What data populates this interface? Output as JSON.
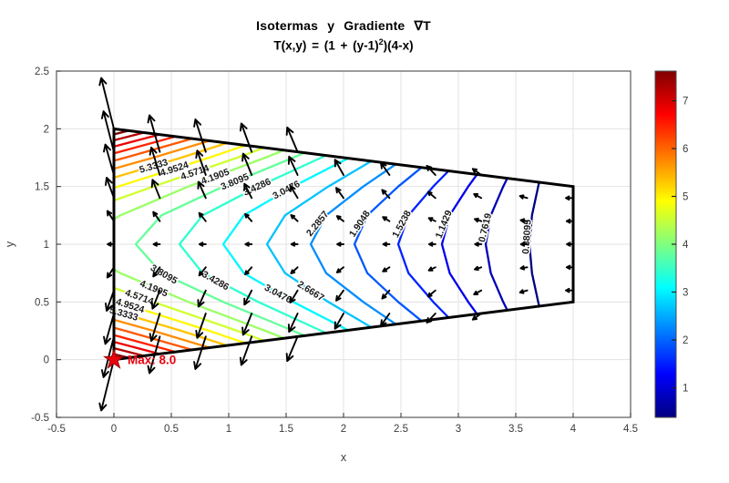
{
  "title": {
    "line1": "Isotermas y Gradiente ∇T",
    "line2_prefix": "T(x,y) = (1 + (y-1)",
    "line2_sup": "2",
    "line2_suffix": ")(4-x)"
  },
  "axes": {
    "xlabel": "x",
    "ylabel": "y",
    "xlim": [
      -0.5,
      4.5
    ],
    "ylim": [
      -0.5,
      2.5
    ],
    "xticks": [
      "-0.5",
      "0",
      "0.5",
      "1",
      "1.5",
      "2",
      "2.5",
      "3",
      "3.5",
      "4",
      "4.5"
    ],
    "yticks": [
      "-0.5",
      "0",
      "0.5",
      "1",
      "1.5",
      "2",
      "2.5"
    ],
    "grid": true,
    "tick_color": "#3c3c3c",
    "grid_color": "#e3e3e3",
    "box_color": "#595959"
  },
  "colorbar": {
    "position": "right",
    "colormap": "jet",
    "vmin": 0.380952,
    "vmax": 7.619048,
    "ticks": [
      "1",
      "2",
      "3",
      "4",
      "5",
      "6",
      "7"
    ],
    "tick_values": [
      1,
      2,
      3,
      4,
      5,
      6,
      7
    ]
  },
  "chart_data": {
    "type": "contour",
    "title": "Isotermas y Gradiente ∇T",
    "subtitle": "T(x,y) = (1 + (y-1)^2)(4-x)",
    "domain_polygon": [
      [
        0,
        0
      ],
      [
        0,
        2
      ],
      [
        4,
        1.5
      ],
      [
        4,
        0.5
      ]
    ],
    "boundary_color": "#000000",
    "levels": [
      0.380952,
      0.761905,
      1.142857,
      1.52381,
      1.904762,
      2.285714,
      2.666667,
      3.047619,
      3.428571,
      3.809524,
      4.190476,
      4.571429,
      4.952381,
      5.333333,
      5.714286,
      6.095238,
      6.47619,
      6.857143,
      7.238095,
      7.619048
    ],
    "contour_labels": [
      {
        "text": "5.3333",
        "level": 5.333333,
        "y": 1.68
      },
      {
        "text": "4.9524",
        "level": 4.952381,
        "y": 1.655
      },
      {
        "text": "4.5714",
        "level": 4.571429,
        "y": 1.625
      },
      {
        "text": "4.1905",
        "level": 4.190476,
        "y": 1.59
      },
      {
        "text": "3.8095",
        "level": 3.809524,
        "y": 1.545
      },
      {
        "text": "3.4286",
        "level": 3.428571,
        "y": 1.5
      },
      {
        "text": "3.0476",
        "level": 3.047619,
        "y": 1.475
      },
      {
        "text": "2.2857",
        "level": 2.285714,
        "y": 1.19
      },
      {
        "text": "1.9048",
        "level": 1.904762,
        "y": 1.19
      },
      {
        "text": "1.5238",
        "level": 1.52381,
        "y": 1.19
      },
      {
        "text": "1.1429",
        "level": 1.142857,
        "y": 1.19
      },
      {
        "text": "0.7619",
        "level": 0.761905,
        "y": 1.165
      },
      {
        "text": "0.38095",
        "level": 0.380952,
        "y": 1.09
      },
      {
        "text": "3.8095",
        "level": 3.809524,
        "y": 0.745
      },
      {
        "text": "4.1905",
        "level": 4.190476,
        "y": 0.62
      },
      {
        "text": "4.5714",
        "level": 4.571429,
        "y": 0.545
      },
      {
        "text": "4.9524",
        "level": 4.952381,
        "y": 0.47
      },
      {
        "text": "5.3333",
        "level": 5.333333,
        "y": 0.4
      },
      {
        "text": "3.4286",
        "level": 3.428571,
        "y": 0.69
      },
      {
        "text": "3.0476",
        "level": 3.047619,
        "y": 0.575
      },
      {
        "text": "2.6667",
        "level": 2.666667,
        "y": 0.6
      }
    ],
    "quiver": {
      "grid_x": {
        "min": 0,
        "max": 4,
        "n": 11
      },
      "grid_y": {
        "min": 0,
        "max": 2,
        "n": 11
      },
      "scale": 0.055,
      "color": "#000000"
    },
    "max_marker": {
      "x": 0,
      "y": 0,
      "label": "Max: 8.0",
      "marker": "pentagram-star",
      "color": "#e8000d"
    }
  }
}
